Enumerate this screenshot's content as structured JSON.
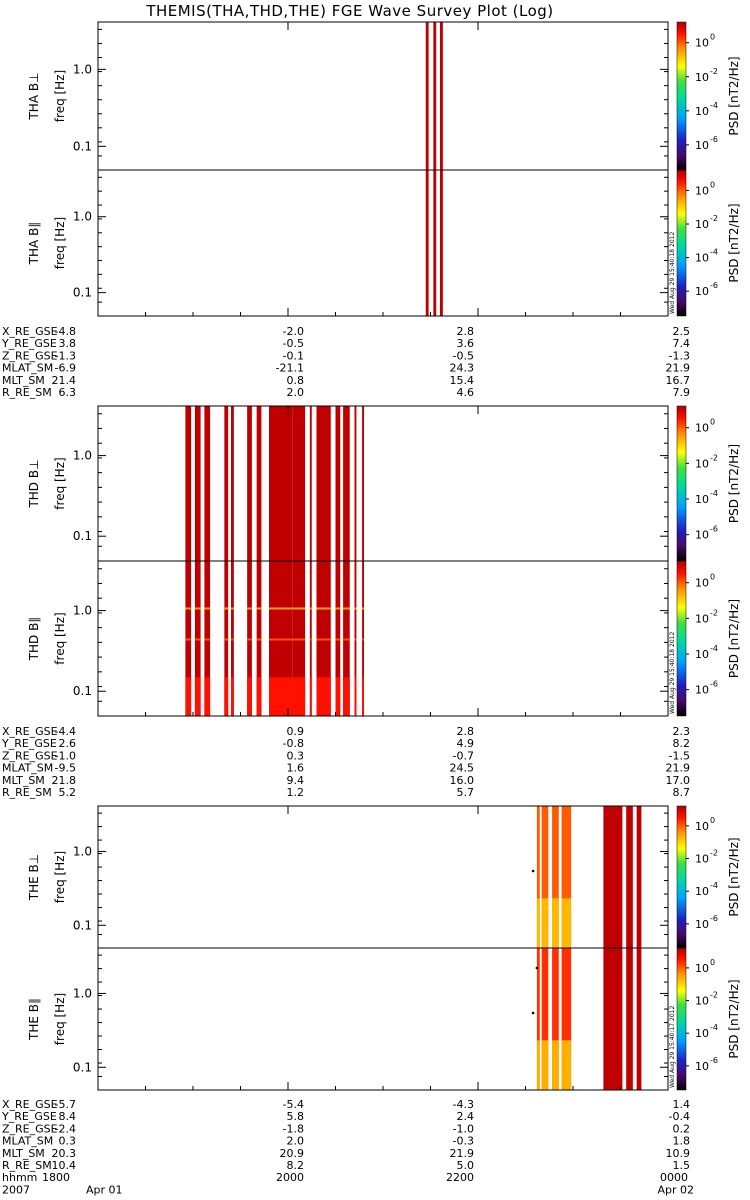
{
  "title": "THEMIS(THA,THD,THE) FGE Wave Survey Plot (Log)",
  "colorbar_label_main": "PSD [nT",
  "colorbar_label_sup": "2",
  "colorbar_label_tail": "/Hz]",
  "colorbar_ticks": [
    "10",
    "10",
    "10",
    "10"
  ],
  "colorbar_tick_exps": [
    "0",
    "-2",
    "-4",
    "-6"
  ],
  "freq_label": "freq [Hz]",
  "y_ticks": [
    "1.0",
    "0.1"
  ],
  "time_axis": {
    "hhmm_label": "hhmm",
    "year_label": "2007",
    "ticks": [
      "1800",
      "2000",
      "2200",
      "0000"
    ],
    "date_labels": [
      "Apr 01",
      "Apr 02"
    ]
  },
  "panels": [
    {
      "probe": "THA",
      "label_perp": "THA B⊥",
      "label_par": "THA B∥",
      "timestamp": "Wed Aug 29 15:40:18 2012"
    },
    {
      "probe": "THD",
      "label_perp": "THD B⊥",
      "label_par": "THD B∥",
      "timestamp": "Wed Aug 29 15:40:18 2012"
    },
    {
      "probe": "THE",
      "label_perp": "THE B⊥",
      "label_par": "THE B∥",
      "timestamp": "Wed Aug 29 15:40:17 2012"
    }
  ],
  "ephemeris_names": [
    "X_RE_GSE",
    "Y_RE_GSE",
    "Z_RE_GSE",
    "MLAT_SM",
    "MLT_SM",
    "R_RE_SM"
  ],
  "ephemeris": [
    [
      [
        "-4.8",
        "-2.0",
        "2.8",
        "2.5"
      ],
      [
        "3.8",
        "-0.5",
        "3.6",
        "7.4"
      ],
      [
        "-1.3",
        "-0.1",
        "-0.5",
        "-1.3"
      ],
      [
        "-6.9",
        "-21.1",
        "24.3",
        "21.9"
      ],
      [
        "21.4",
        "0.8",
        "15.4",
        "16.7"
      ],
      [
        "6.3",
        "2.0",
        "4.6",
        "7.9"
      ]
    ],
    [
      [
        "-4.4",
        "0.9",
        "2.8",
        "2.3"
      ],
      [
        "2.6",
        "-0.8",
        "4.9",
        "8.2"
      ],
      [
        "-1.0",
        "0.3",
        "-0.7",
        "-1.5"
      ],
      [
        "-9.5",
        "1.6",
        "24.5",
        "21.9"
      ],
      [
        "21.8",
        "9.4",
        "16.0",
        "17.0"
      ],
      [
        "5.2",
        "1.2",
        "5.7",
        "8.7"
      ]
    ],
    [
      [
        "-5.7",
        "-5.4",
        "-4.3",
        "1.4"
      ],
      [
        "8.4",
        "5.8",
        "2.4",
        "-0.4"
      ],
      [
        "-2.4",
        "-1.8",
        "-1.0",
        "0.2"
      ],
      [
        "0.3",
        "2.0",
        "-0.3",
        "1.8"
      ],
      [
        "20.3",
        "20.9",
        "21.9",
        "10.9"
      ],
      [
        "10.4",
        "8.2",
        "5.0",
        "1.5"
      ]
    ]
  ],
  "chart_data": {
    "type": "heatmap",
    "title": "THEMIS(THA,THD,THE) FGE Wave Survey Plot (Log)",
    "xlabel": "hhmm",
    "ylabel": "freq [Hz]",
    "x_range": [
      "2007-04-01 18:00",
      "2007-04-02 00:00"
    ],
    "x_ticks": [
      "1800",
      "2000",
      "2200",
      "0000"
    ],
    "y_scale": "log",
    "y_ticks": [
      0.1,
      1.0
    ],
    "colorbar": {
      "label": "PSD [nT^2/Hz]",
      "scale": "log",
      "ticks": [
        "10^0",
        "10^-2",
        "10^-4",
        "10^-6"
      ]
    },
    "data_intervals_hours": {
      "THA": [
        [
          3.45,
          3.48
        ],
        [
          3.53,
          3.56
        ],
        [
          3.6,
          3.63
        ]
      ],
      "THD": [
        [
          0.92,
          0.98
        ],
        [
          1.02,
          1.08
        ],
        [
          1.12,
          1.18
        ],
        [
          1.33,
          1.37
        ],
        [
          1.4,
          1.43
        ],
        [
          1.57,
          1.62
        ],
        [
          1.67,
          1.72
        ],
        [
          1.8,
          2.05
        ],
        [
          2.05,
          2.18
        ],
        [
          2.23,
          2.25
        ],
        [
          2.3,
          2.45
        ],
        [
          2.5,
          2.55
        ],
        [
          2.58,
          2.65
        ],
        [
          2.7,
          2.72
        ],
        [
          2.78,
          2.8
        ]
      ],
      "THE": [
        [
          4.62,
          4.65
        ],
        [
          4.67,
          4.74
        ],
        [
          4.78,
          4.85
        ],
        [
          4.88,
          4.98
        ],
        [
          5.32,
          5.52
        ],
        [
          5.56,
          5.63
        ],
        [
          5.67,
          5.72
        ]
      ]
    }
  }
}
